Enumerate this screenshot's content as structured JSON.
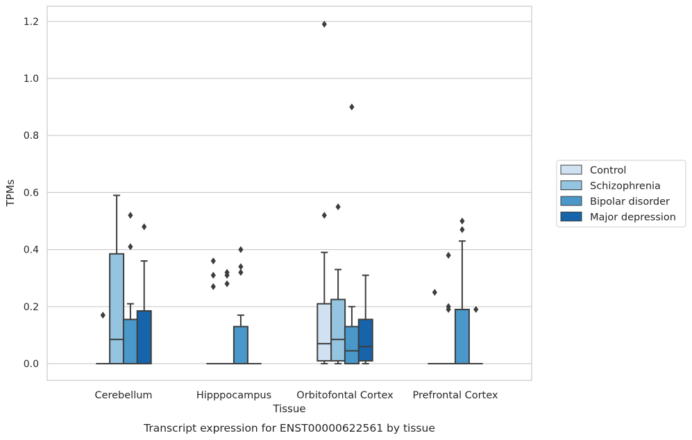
{
  "chart_data": {
    "type": "box",
    "caption": "Transcript expression for ENST00000622561 by tissue",
    "xlabel": "Tissue",
    "ylabel": "TPMs",
    "ylim": [
      -0.06,
      1.25
    ],
    "yticks": [
      0.0,
      0.2,
      0.4,
      0.6,
      0.8,
      1.0,
      1.2
    ],
    "ytick_labels": [
      "0.0",
      "0.2",
      "0.4",
      "0.6",
      "0.8",
      "1.0",
      "1.2"
    ],
    "grid": "horizontal",
    "legend_position": "right-outside",
    "categories": [
      "Cerebellum",
      "Hipppocampus",
      "Orbitofontal Cortex",
      "Prefrontal Cortex"
    ],
    "series": [
      {
        "name": "Control",
        "color": "#d0e1f2",
        "boxes": [
          {
            "q1": 0,
            "median": 0,
            "q3": 0,
            "whisker_low": 0,
            "whisker_high": 0,
            "outliers": [
              0.17
            ]
          },
          {
            "q1": 0,
            "median": 0,
            "q3": 0,
            "whisker_low": 0,
            "whisker_high": 0,
            "outliers": [
              0.27,
              0.31,
              0.36
            ]
          },
          {
            "q1": 0.01,
            "median": 0.07,
            "q3": 0.21,
            "whisker_low": 0.0,
            "whisker_high": 0.39,
            "outliers": [
              0.52,
              1.19
            ]
          },
          {
            "q1": 0,
            "median": 0,
            "q3": 0,
            "whisker_low": 0,
            "whisker_high": 0,
            "outliers": [
              0.25
            ]
          }
        ]
      },
      {
        "name": "Schizophrenia",
        "color": "#94c4df",
        "boxes": [
          {
            "q1": 0,
            "median": 0.085,
            "q3": 0.385,
            "whisker_low": 0,
            "whisker_high": 0.59,
            "outliers": []
          },
          {
            "q1": 0,
            "median": 0,
            "q3": 0,
            "whisker_low": 0,
            "whisker_high": 0,
            "outliers": [
              0.28,
              0.31,
              0.32
            ]
          },
          {
            "q1": 0.01,
            "median": 0.085,
            "q3": 0.225,
            "whisker_low": 0.0,
            "whisker_high": 0.33,
            "outliers": [
              0.55
            ]
          },
          {
            "q1": 0,
            "median": 0,
            "q3": 0,
            "whisker_low": 0,
            "whisker_high": 0,
            "outliers": [
              0.19,
              0.2,
              0.38
            ]
          }
        ]
      },
      {
        "name": "Bipolar disorder",
        "color": "#4a98c9",
        "boxes": [
          {
            "q1": 0,
            "median": 0,
            "q3": 0.155,
            "whisker_low": 0,
            "whisker_high": 0.21,
            "outliers": [
              0.41,
              0.52
            ]
          },
          {
            "q1": 0,
            "median": 0,
            "q3": 0.13,
            "whisker_low": 0,
            "whisker_high": 0.17,
            "outliers": [
              0.32,
              0.34,
              0.4
            ]
          },
          {
            "q1": 0,
            "median": 0.045,
            "q3": 0.13,
            "whisker_low": 0,
            "whisker_high": 0.2,
            "outliers": [
              0.9
            ]
          },
          {
            "q1": 0,
            "median": 0,
            "q3": 0.19,
            "whisker_low": 0,
            "whisker_high": 0.43,
            "outliers": [
              0.47,
              0.5
            ]
          }
        ]
      },
      {
        "name": "Major depression",
        "color": "#1764ab",
        "boxes": [
          {
            "q1": 0,
            "median": 0,
            "q3": 0.185,
            "whisker_low": 0,
            "whisker_high": 0.36,
            "outliers": [
              0.48
            ]
          },
          {
            "q1": 0,
            "median": 0,
            "q3": 0,
            "whisker_low": 0,
            "whisker_high": 0,
            "outliers": []
          },
          {
            "q1": 0.01,
            "median": 0.06,
            "q3": 0.155,
            "whisker_low": 0.0,
            "whisker_high": 0.31,
            "outliers": []
          },
          {
            "q1": 0,
            "median": 0,
            "q3": 0,
            "whisker_low": 0,
            "whisker_high": 0,
            "outliers": [
              0.19
            ]
          }
        ]
      }
    ]
  }
}
